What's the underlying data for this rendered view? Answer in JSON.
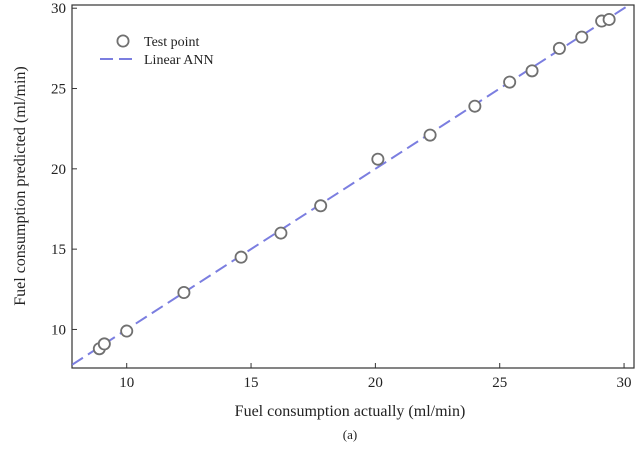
{
  "chart_data": {
    "type": "scatter",
    "title": "",
    "xlabel": "Fuel consumption actually (ml/min)",
    "ylabel": "Fuel consumption predicted (ml/min)",
    "caption": "(a)",
    "xlim": [
      7.8,
      30.4
    ],
    "ylim": [
      7.6,
      30.2
    ],
    "xticks": [
      "10",
      "15",
      "20",
      "25",
      "30"
    ],
    "yticks": [
      "10",
      "15",
      "20",
      "25",
      "30"
    ],
    "grid": false,
    "legend_position": "top-left",
    "series": [
      {
        "name": "Test point",
        "kind": "scatter",
        "marker": "hollow-circle",
        "color": "#707070",
        "x": [
          8.9,
          9.1,
          10.0,
          12.3,
          14.6,
          16.2,
          17.8,
          20.1,
          22.2,
          24.0,
          25.4,
          26.3,
          27.4,
          28.3,
          29.1,
          29.4
        ],
        "y": [
          8.8,
          9.1,
          9.9,
          12.3,
          14.5,
          16.0,
          17.7,
          20.6,
          22.1,
          23.9,
          25.4,
          26.1,
          27.5,
          28.2,
          29.2,
          29.3
        ]
      },
      {
        "name": "Linear ANN",
        "kind": "line",
        "style": "dashed",
        "color": "#7b7ee0",
        "x": [
          7.8,
          30.4
        ],
        "y": [
          7.8,
          30.4
        ]
      }
    ]
  }
}
